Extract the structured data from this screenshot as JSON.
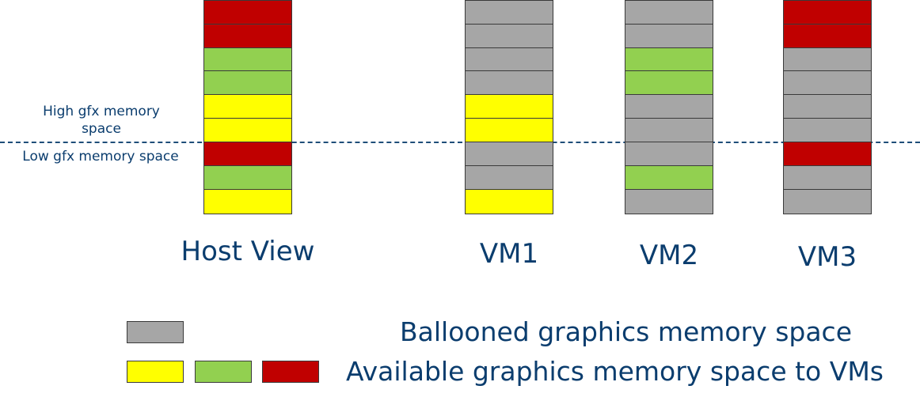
{
  "colors": {
    "ballooned": "#a6a6a6",
    "yellow": "#ffff00",
    "green": "#92d050",
    "red": "#c00000"
  },
  "labels": {
    "high_space": "High gfx memory\nspace",
    "low_space": "Low gfx memory space"
  },
  "columns": [
    {
      "label": "Host View",
      "cells": [
        "red",
        "red",
        "green",
        "green",
        "yellow",
        "yellow",
        "red",
        "green",
        "yellow"
      ]
    },
    {
      "label": "VM1",
      "cells": [
        "ballooned",
        "ballooned",
        "ballooned",
        "ballooned",
        "yellow",
        "yellow",
        "ballooned",
        "ballooned",
        "yellow"
      ]
    },
    {
      "label": "VM2",
      "cells": [
        "ballooned",
        "ballooned",
        "green",
        "green",
        "ballooned",
        "ballooned",
        "ballooned",
        "green",
        "ballooned"
      ]
    },
    {
      "label": "VM3",
      "cells": [
        "red",
        "red",
        "ballooned",
        "ballooned",
        "ballooned",
        "ballooned",
        "red",
        "ballooned",
        "ballooned"
      ]
    }
  ],
  "legend": {
    "ballooned_text": "Ballooned graphics memory space",
    "available_text": "Available graphics memory space to VMs",
    "available_swatches": [
      "yellow",
      "green",
      "red"
    ]
  }
}
